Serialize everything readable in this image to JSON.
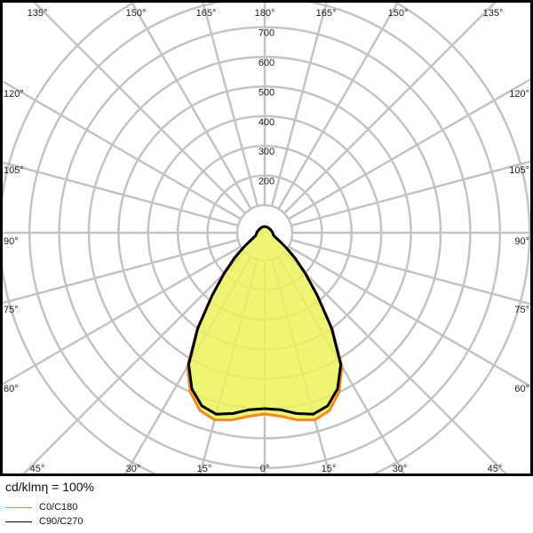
{
  "chart_data": {
    "type": "polar",
    "unit_label": "cd/klmη = 100%",
    "radial_ticks": [
      200,
      300,
      400,
      500,
      600,
      700
    ],
    "grid_rings": [
      100,
      200,
      300,
      400,
      500,
      600,
      700,
      800,
      900
    ],
    "angle_step_deg": 15,
    "angle_labels_top": [
      "135°",
      "150°",
      "165°",
      "180°",
      "165°",
      "150°",
      "135°"
    ],
    "angle_labels_left": [
      "120°",
      "105°",
      "90°",
      "75°",
      "60°"
    ],
    "angle_labels_right": [
      "120°",
      "105°",
      "90°",
      "75°",
      "60°"
    ],
    "angle_labels_bottom": [
      "45°",
      "30°",
      "15°",
      "0°",
      "15°",
      "30°",
      "45°"
    ],
    "gamma": [
      0,
      5,
      10,
      15,
      20,
      25,
      30,
      35,
      40,
      45,
      50,
      55,
      60,
      65,
      70,
      75,
      80,
      85,
      90,
      95,
      100,
      110,
      120,
      135,
      150,
      165,
      180
    ],
    "series": [
      {
        "name": "C0/C180",
        "color": "#f08a24",
        "values": [
          618,
          628,
          648,
          660,
          645,
          600,
          528,
          405,
          285,
          203,
          142,
          97,
          68,
          50,
          42,
          38,
          36,
          35,
          34,
          33,
          32,
          30,
          29,
          28,
          28,
          28,
          28
        ]
      },
      {
        "name": "C90/C270",
        "color": "#000000",
        "values": [
          600,
          606,
          626,
          640,
          628,
          588,
          520,
          400,
          282,
          200,
          140,
          96,
          67,
          50,
          42,
          38,
          36,
          35,
          34,
          33,
          32,
          30,
          29,
          28,
          28,
          28,
          28
        ]
      }
    ],
    "fill_color": "#ebf25a",
    "grid": true,
    "legend_placement": "bottom-left"
  }
}
